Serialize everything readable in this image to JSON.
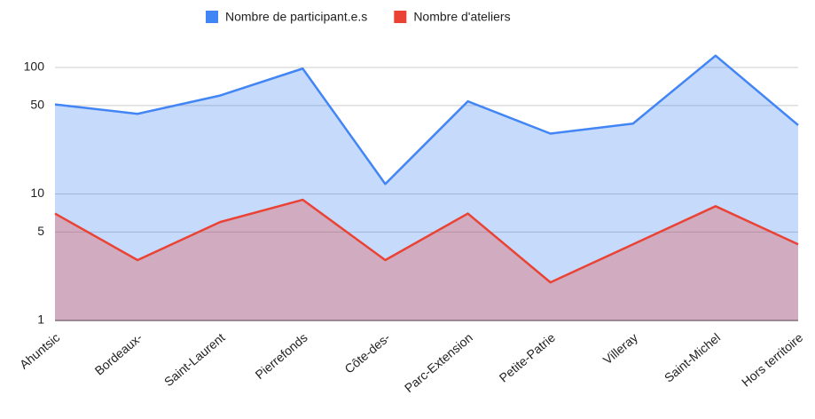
{
  "chart_data": {
    "type": "area",
    "log_scale": true,
    "grid": true,
    "legend": "top",
    "categories": [
      "Ahuntsic",
      "Bordeaux-",
      "Saint-Laurent",
      "Pierrefonds",
      "Côte-des-",
      "Parc-Extension",
      "Petite-Patrie",
      "Villeray",
      "Saint-Michel",
      "Hors territoire"
    ],
    "series": [
      {
        "name": "Nombre de participant.e.s",
        "color": "#4285f4",
        "values": [
          51,
          43,
          60,
          98,
          12,
          54,
          30,
          36,
          124,
          35
        ]
      },
      {
        "name": "Nombre d'ateliers",
        "color": "#ea4335",
        "values": [
          7,
          3,
          6,
          9,
          3,
          7,
          2,
          4,
          8,
          4
        ]
      }
    ],
    "ylim": [
      1,
      160
    ],
    "yticks": [
      1,
      5,
      10,
      50,
      100
    ]
  }
}
